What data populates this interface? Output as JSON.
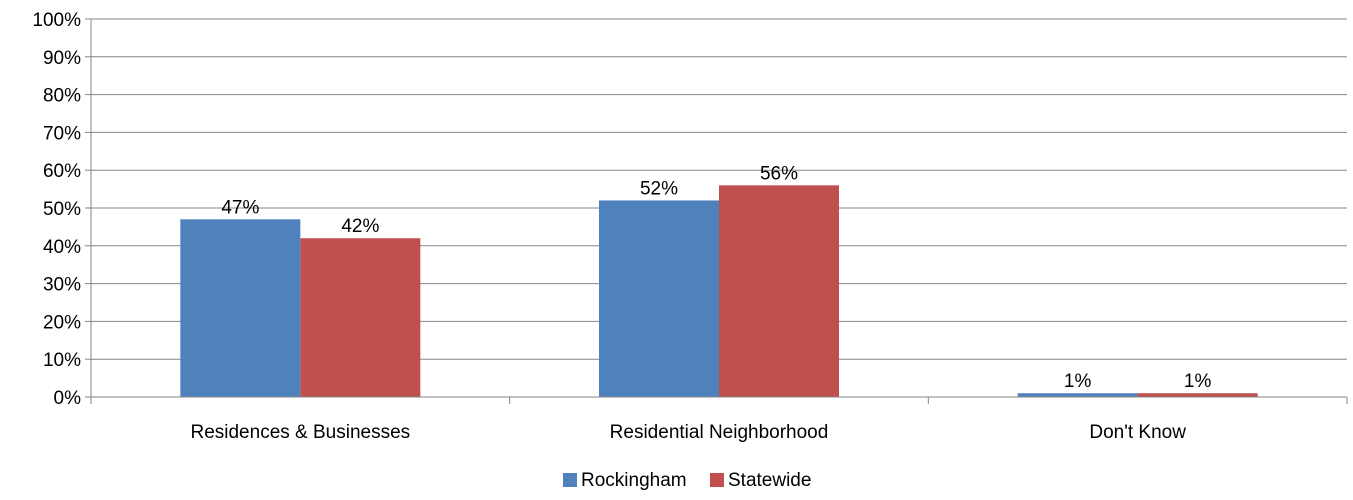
{
  "chart_data": {
    "type": "bar",
    "title": "",
    "xlabel": "",
    "ylabel": "",
    "categories": [
      "Residences & Businesses",
      "Residential Neighborhood",
      "Don't Know"
    ],
    "series": [
      {
        "name": "Rockingham",
        "values": [
          47,
          52,
          1
        ],
        "color": "#4F81BD"
      },
      {
        "name": "Statewide",
        "values": [
          42,
          56,
          1
        ],
        "color": "#C0504D"
      }
    ],
    "value_labels": [
      [
        "47%",
        "52%",
        "1%"
      ],
      [
        "42%",
        "56%",
        "1%"
      ]
    ],
    "ylim": [
      0,
      100
    ],
    "yticks": [
      0,
      10,
      20,
      30,
      40,
      50,
      60,
      70,
      80,
      90,
      100
    ],
    "ytick_labels": [
      "0%",
      "10%",
      "20%",
      "30%",
      "40%",
      "50%",
      "60%",
      "70%",
      "80%",
      "90%",
      "100%"
    ],
    "grid": true,
    "legend_position": "bottom",
    "colors": {
      "gridline": "#868686",
      "axis": "#868686"
    }
  }
}
